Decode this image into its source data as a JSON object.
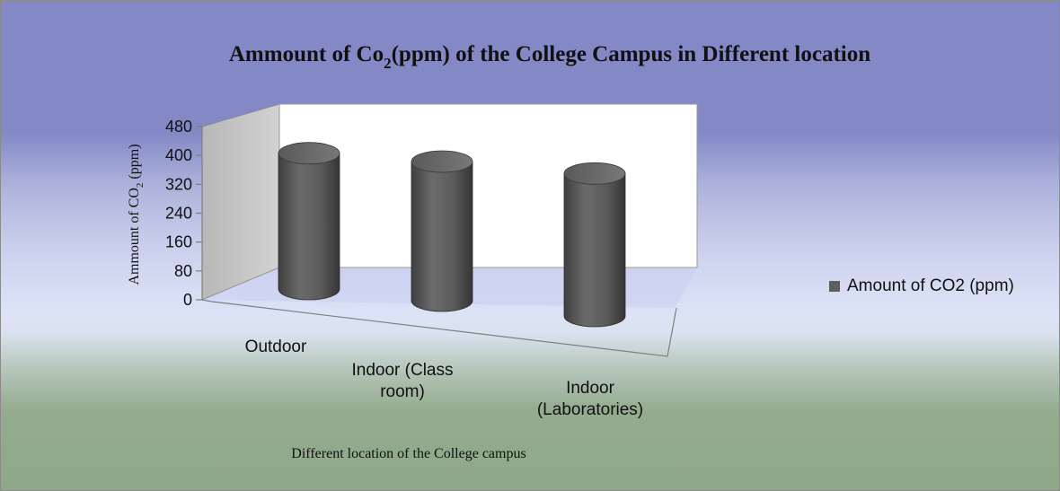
{
  "chart_data": {
    "type": "bar",
    "style": "3d-cylinder",
    "title": "Ammount of Co2(ppm) of the College Campus in  Different location",
    "title_parts": {
      "before": "Ammount of Co",
      "sub": "2",
      "after": "(ppm) of the College Campus in  Different location"
    },
    "categories": [
      "Outdoor",
      "Indoor (Class room)",
      "Indoor (Laboratories)"
    ],
    "category_lines": [
      [
        "Outdoor"
      ],
      [
        "Indoor (Class",
        "room)"
      ],
      [
        "Indoor",
        "(Laboratories)"
      ]
    ],
    "series": [
      {
        "name": "Amount of CO2 (ppm)",
        "values": [
          410,
          420,
          430
        ],
        "color": "#5e5e5e"
      }
    ],
    "xlabel": "Different location of the  College campus",
    "ylabel": "Ammount of CO2 (ppm)",
    "ylabel_parts": {
      "before": "Ammount of CO",
      "sub": "2",
      "after": " (ppm)"
    },
    "ylim": [
      0,
      480
    ],
    "yticks": [
      0,
      80,
      160,
      240,
      320,
      400,
      480
    ],
    "legend_position": "right",
    "grid": false
  }
}
